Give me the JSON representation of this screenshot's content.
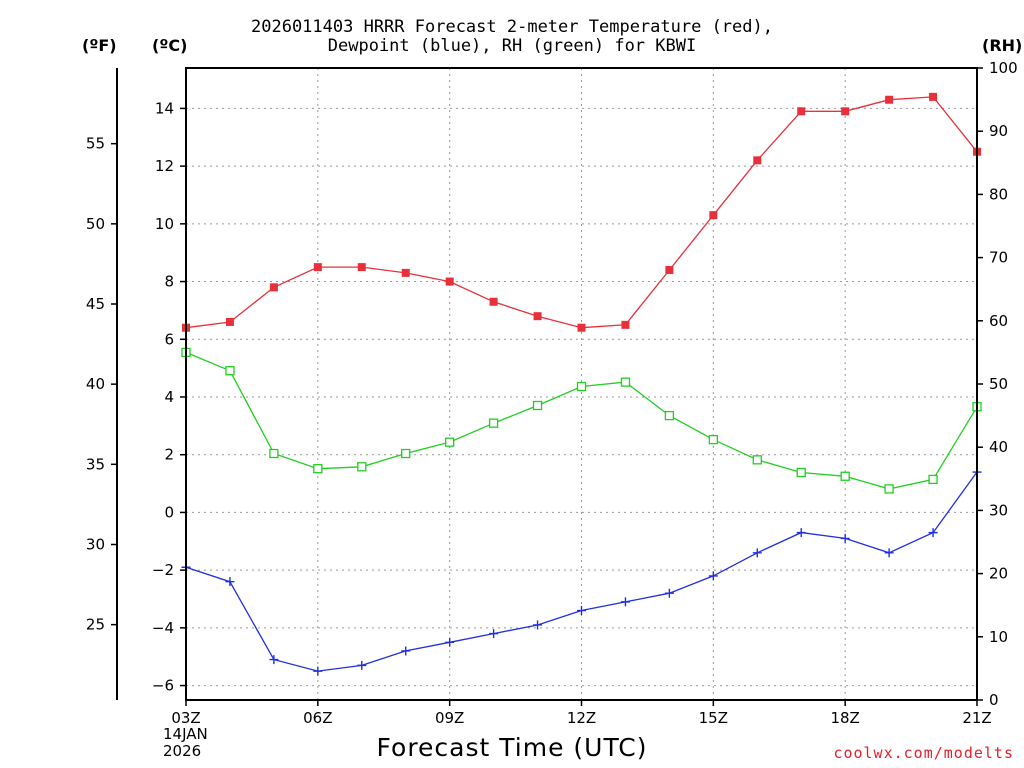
{
  "header": {
    "title_line1": "2026011403 HRRR Forecast 2-meter Temperature (red),",
    "title_line2": "Dewpoint (blue), RH (green) for KBWI"
  },
  "units": {
    "f": "(ºF)",
    "c": "(ºC)",
    "rh": "(RH)"
  },
  "footer": {
    "xlabel": "Forecast Time (UTC)",
    "credit": "coolwx.com/modelts",
    "date_line1": "14JAN",
    "date_line2": "2026"
  },
  "colors": {
    "temp": "#e8303a",
    "dew": "#2030e0",
    "rh": "#20d020",
    "grid": "#999999"
  },
  "chart_data": {
    "type": "line",
    "title": "2026011403 HRRR Forecast 2-meter Temperature (red), Dewpoint (blue), RH (green) for KBWI",
    "xlabel": "Forecast Time (UTC)",
    "x": [
      3,
      4,
      5,
      6,
      7,
      8,
      9,
      10,
      11,
      12,
      13,
      14,
      15,
      16,
      17,
      18,
      19,
      20,
      21
    ],
    "xlim": [
      3,
      21
    ],
    "xticks": [
      3,
      6,
      9,
      12,
      15,
      18,
      21
    ],
    "xtick_labels": [
      "03Z",
      "06Z",
      "09Z",
      "12Z",
      "15Z",
      "18Z",
      "21Z"
    ],
    "ylim_c": [
      -6.5,
      15.4
    ],
    "yticks_c": [
      -6,
      -4,
      -2,
      0,
      2,
      4,
      6,
      8,
      10,
      12,
      14
    ],
    "yticks_c_labels": [
      "−6",
      "−4",
      "−2",
      "0",
      "2",
      "4",
      "6",
      "8",
      "10",
      "12",
      "14"
    ],
    "yticks_f": [
      25,
      30,
      35,
      40,
      45,
      50,
      55
    ],
    "yticks_f_labels": [
      "25",
      "30",
      "35",
      "40",
      "45",
      "50",
      "55"
    ],
    "ylim_rh": [
      0,
      100
    ],
    "yticks_rh": [
      0,
      10,
      20,
      30,
      40,
      50,
      60,
      70,
      80,
      90,
      100
    ],
    "yticks_rh_labels": [
      "0",
      "10",
      "20",
      "30",
      "40",
      "50",
      "60",
      "70",
      "80",
      "90",
      "100"
    ],
    "grid": true,
    "series": [
      {
        "name": "2-meter Temperature",
        "axis": "c",
        "values": [
          6.4,
          6.6,
          7.8,
          8.5,
          8.5,
          8.3,
          8.0,
          7.3,
          6.8,
          6.4,
          6.5,
          8.4,
          10.3,
          12.2,
          13.9,
          13.9,
          14.3,
          14.4,
          12.5
        ]
      },
      {
        "name": "Dewpoint",
        "axis": "c",
        "values": [
          -1.9,
          -2.4,
          -5.1,
          -5.5,
          -5.3,
          -4.8,
          -4.5,
          -4.2,
          -3.9,
          -3.4,
          -3.1,
          -2.8,
          -2.2,
          -1.4,
          -0.7,
          -0.9,
          -1.4,
          -0.7,
          1.4
        ]
      },
      {
        "name": "RH",
        "axis": "rh",
        "values": [
          55.0,
          52.1,
          39.0,
          36.6,
          36.9,
          39.0,
          40.8,
          43.8,
          46.6,
          49.6,
          50.3,
          45.0,
          41.2,
          38.0,
          36.0,
          35.4,
          33.4,
          34.9,
          46.4
        ]
      }
    ]
  }
}
